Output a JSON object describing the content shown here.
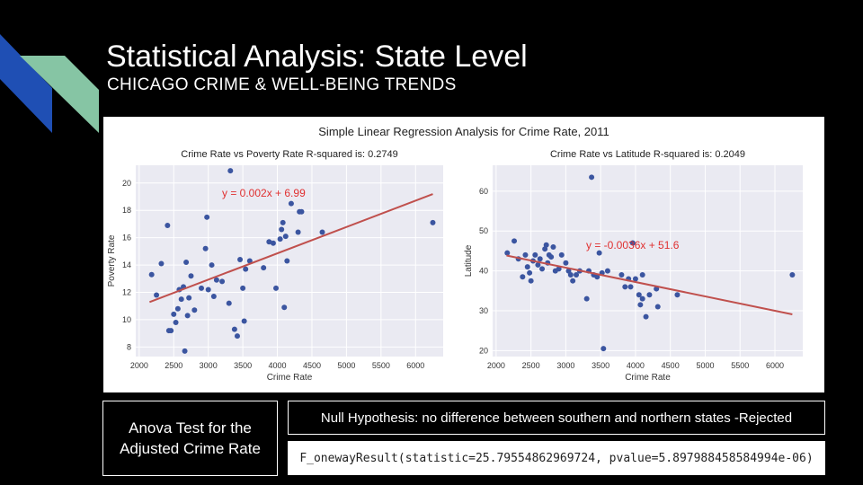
{
  "slide": {
    "title": "Statistical Analysis: State Level",
    "subtitle": "CHICAGO CRIME & WELL-BEING TRENDS",
    "anova_label": "Anova Test for the Adjusted Crime Rate",
    "hypothesis": "Null Hypothesis: no difference between southern and northern states -Rejected",
    "result": "F_onewayResult(statistic=25.79554862969724, pvalue=5.897988458584994e-06)",
    "colors": {
      "background": "#000000",
      "deco_blue": "#1f4fb4",
      "deco_green": "#86c5a4",
      "point": "#3b55a0",
      "fit_line": "#c0504d",
      "plot_bg": "#eaeaf2"
    }
  },
  "chart_data": [
    {
      "type": "scatter",
      "suptitle": "Simple Linear Regression Analysis for Crime Rate, 2011",
      "title": "Crime Rate vs Poverty Rate R-squared is: 0.2749",
      "xlabel": "Crime Rate",
      "ylabel": "Poverty Rate",
      "annotation": "y = 0.002x + 6.99",
      "xlim": [
        1950,
        6400
      ],
      "ylim": [
        7.3,
        21.3
      ],
      "xticks": [
        2000,
        2500,
        3000,
        3500,
        4000,
        4500,
        5000,
        5500,
        6000
      ],
      "yticks": [
        8,
        10,
        12,
        14,
        16,
        18,
        20
      ],
      "fit_line": {
        "x": [
          2150,
          6250
        ],
        "y": [
          11.29,
          19.19
        ]
      },
      "grid": true,
      "points": [
        [
          2180,
          13.3
        ],
        [
          2250,
          11.8
        ],
        [
          2320,
          14.1
        ],
        [
          2410,
          16.9
        ],
        [
          2430,
          9.2
        ],
        [
          2460,
          9.2
        ],
        [
          2500,
          10.4
        ],
        [
          2530,
          9.8
        ],
        [
          2560,
          10.8
        ],
        [
          2580,
          12.2
        ],
        [
          2610,
          11.5
        ],
        [
          2640,
          12.4
        ],
        [
          2660,
          7.7
        ],
        [
          2680,
          14.2
        ],
        [
          2700,
          10.3
        ],
        [
          2720,
          11.6
        ],
        [
          2750,
          13.2
        ],
        [
          2800,
          10.7
        ],
        [
          2900,
          12.3
        ],
        [
          2960,
          15.2
        ],
        [
          2980,
          17.5
        ],
        [
          3000,
          12.2
        ],
        [
          3050,
          14.0
        ],
        [
          3080,
          11.7
        ],
        [
          3120,
          12.9
        ],
        [
          3200,
          12.8
        ],
        [
          3300,
          11.2
        ],
        [
          3320,
          20.9
        ],
        [
          3380,
          9.3
        ],
        [
          3420,
          8.8
        ],
        [
          3460,
          14.4
        ],
        [
          3500,
          12.3
        ],
        [
          3520,
          9.9
        ],
        [
          3540,
          13.7
        ],
        [
          3600,
          14.3
        ],
        [
          3800,
          13.8
        ],
        [
          3880,
          15.7
        ],
        [
          3940,
          15.6
        ],
        [
          3980,
          12.3
        ],
        [
          4040,
          15.9
        ],
        [
          4060,
          16.6
        ],
        [
          4080,
          17.1
        ],
        [
          4100,
          10.9
        ],
        [
          4120,
          16.1
        ],
        [
          4140,
          14.3
        ],
        [
          4200,
          18.5
        ],
        [
          4300,
          16.4
        ],
        [
          4320,
          17.9
        ],
        [
          4350,
          17.9
        ],
        [
          4650,
          16.4
        ],
        [
          6250,
          17.1
        ]
      ]
    },
    {
      "type": "scatter",
      "title": "Crime Rate vs Latitude R-squared is: 0.2049",
      "xlabel": "Crime Rate",
      "ylabel": "Latitude",
      "annotation": "y = -0.0036x + 51.6",
      "xlim": [
        1950,
        6400
      ],
      "ylim": [
        18.5,
        66.5
      ],
      "xticks": [
        2000,
        2500,
        3000,
        3500,
        4000,
        4500,
        5000,
        5500,
        6000
      ],
      "yticks": [
        20,
        30,
        40,
        50,
        60
      ],
      "fit_line": {
        "x": [
          2150,
          6250
        ],
        "y": [
          43.86,
          29.1
        ]
      },
      "grid": true,
      "points": [
        [
          2160,
          44.5
        ],
        [
          2260,
          47.5
        ],
        [
          2320,
          43.0
        ],
        [
          2380,
          38.5
        ],
        [
          2420,
          44.0
        ],
        [
          2450,
          41.0
        ],
        [
          2480,
          39.5
        ],
        [
          2500,
          37.5
        ],
        [
          2530,
          42.5
        ],
        [
          2560,
          44.0
        ],
        [
          2600,
          41.5
        ],
        [
          2630,
          43.0
        ],
        [
          2660,
          40.5
        ],
        [
          2700,
          45.5
        ],
        [
          2720,
          46.5
        ],
        [
          2740,
          42.0
        ],
        [
          2760,
          44.0
        ],
        [
          2790,
          43.5
        ],
        [
          2820,
          46.0
        ],
        [
          2850,
          40.0
        ],
        [
          2900,
          40.5
        ],
        [
          2940,
          44.0
        ],
        [
          3000,
          42.0
        ],
        [
          3040,
          40.0
        ],
        [
          3070,
          39.0
        ],
        [
          3100,
          37.5
        ],
        [
          3150,
          39.0
        ],
        [
          3200,
          40.0
        ],
        [
          3300,
          33.0
        ],
        [
          3330,
          40.0
        ],
        [
          3370,
          63.5
        ],
        [
          3400,
          39.0
        ],
        [
          3450,
          38.5
        ],
        [
          3480,
          44.5
        ],
        [
          3520,
          39.5
        ],
        [
          3540,
          20.5
        ],
        [
          3600,
          40.0
        ],
        [
          3800,
          39.0
        ],
        [
          3850,
          36.0
        ],
        [
          3900,
          38.0
        ],
        [
          3930,
          36.0
        ],
        [
          3960,
          47.0
        ],
        [
          4000,
          38.0
        ],
        [
          4050,
          34.0
        ],
        [
          4070,
          31.5
        ],
        [
          4100,
          33.0
        ],
        [
          4100,
          39.0
        ],
        [
          4150,
          28.5
        ],
        [
          4200,
          34.0
        ],
        [
          4300,
          35.5
        ],
        [
          4320,
          31.0
        ],
        [
          4600,
          34.0
        ],
        [
          6250,
          39.0
        ]
      ]
    }
  ]
}
